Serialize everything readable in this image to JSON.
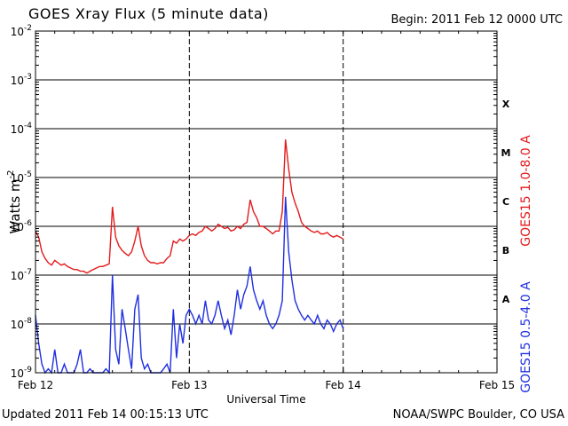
{
  "header": {
    "title": "GOES Xray Flux (5 minute data)",
    "begin": "Begin:  2011 Feb 12 0000 UTC"
  },
  "footer": {
    "updated": "Updated 2011 Feb 14 00:15:13 UTC",
    "credit": "NOAA/SWPC Boulder, CO USA"
  },
  "chart_data": {
    "type": "line",
    "title": "GOES Xray Flux (5 minute data)",
    "xlabel": "Universal Time",
    "ylabel": "Watts m-2",
    "yscale": "log",
    "ylim": [
      1e-09,
      0.01
    ],
    "xlim": [
      0,
      72
    ],
    "x_unit": "hours since 2011 Feb 12 0000 UTC",
    "yticks": [
      "10-9",
      "10-8",
      "10-7",
      "10-6",
      "10-5",
      "10-4",
      "10-3",
      "10-2"
    ],
    "xticks": [
      {
        "x": 0,
        "label": "Feb 12"
      },
      {
        "x": 24,
        "label": "Feb 13"
      },
      {
        "x": 48,
        "label": "Feb 14"
      },
      {
        "x": 72,
        "label": "Feb 15"
      }
    ],
    "flare_classes": [
      {
        "label": "X",
        "y": 0.00032
      },
      {
        "label": "M",
        "y": 3.2e-05
      },
      {
        "label": "C",
        "y": 3.2e-06
      },
      {
        "label": "B",
        "y": 3.2e-07
      },
      {
        "label": "A",
        "y": 3.2e-08
      }
    ],
    "grid": true,
    "series": [
      {
        "name": "GOES15 1.0-8.0 A",
        "color": "#e31a1c",
        "x": [
          0,
          0.5,
          1,
          1.5,
          2,
          2.5,
          3,
          3.5,
          4,
          4.5,
          5,
          5.5,
          6,
          6.5,
          7,
          7.5,
          8,
          8.5,
          9,
          9.5,
          10,
          10.5,
          11,
          11.5,
          12,
          12.5,
          13,
          13.5,
          14,
          14.5,
          15,
          15.5,
          16,
          16.5,
          17,
          17.5,
          18,
          18.5,
          19,
          19.5,
          20,
          20.5,
          21,
          21.5,
          22,
          22.5,
          23,
          23.5,
          24,
          24.5,
          25,
          25.5,
          26,
          26.5,
          27,
          27.5,
          28,
          28.5,
          29,
          29.5,
          30,
          30.5,
          31,
          31.5,
          32,
          32.5,
          33,
          33.5,
          34,
          34.5,
          35,
          35.5,
          36,
          36.5,
          37,
          37.5,
          38,
          38.5,
          39,
          39.5,
          40,
          40.5,
          41,
          41.5,
          42,
          42.5,
          43,
          43.5,
          44,
          44.5,
          45,
          45.5,
          46,
          46.5,
          47,
          47.5,
          48
        ],
        "y": [
          8e-07,
          6e-07,
          3e-07,
          2.2e-07,
          1.8e-07,
          1.6e-07,
          2e-07,
          1.8e-07,
          1.6e-07,
          1.7e-07,
          1.5e-07,
          1.4e-07,
          1.3e-07,
          1.3e-07,
          1.2e-07,
          1.2e-07,
          1.1e-07,
          1.2e-07,
          1.3e-07,
          1.4e-07,
          1.5e-07,
          1.5e-07,
          1.6e-07,
          1.7e-07,
          2.5e-06,
          6e-07,
          4e-07,
          3.2e-07,
          2.8e-07,
          2.5e-07,
          3e-07,
          5e-07,
          1e-06,
          4e-07,
          2.5e-07,
          2e-07,
          1.8e-07,
          1.8e-07,
          1.7e-07,
          1.8e-07,
          1.8e-07,
          2.2e-07,
          2.5e-07,
          5e-07,
          4.5e-07,
          5.5e-07,
          5e-07,
          5.5e-07,
          6.5e-07,
          7e-07,
          6.5e-07,
          7.5e-07,
          8e-07,
          1e-06,
          9e-07,
          8e-07,
          9e-07,
          1.1e-06,
          1e-06,
          9e-07,
          9.5e-07,
          8e-07,
          8.5e-07,
          1e-06,
          9e-07,
          1.1e-06,
          1.2e-06,
          3.5e-06,
          2e-06,
          1.5e-06,
          1e-06,
          1e-06,
          9e-07,
          8e-07,
          7e-07,
          8e-07,
          8e-07,
          2e-06,
          6e-05,
          1.5e-05,
          5e-06,
          3e-06,
          2e-06,
          1.2e-06,
          1e-06,
          9e-07,
          8e-07,
          7.5e-07,
          8e-07,
          7e-07,
          7e-07,
          7.5e-07,
          6.5e-07,
          6e-07,
          6.5e-07,
          6e-07,
          5.5e-07
        ]
      },
      {
        "name": "GOES15 0.5-4.0 A",
        "color": "#1f2fe0",
        "x": [
          0,
          0.5,
          1,
          1.5,
          2,
          2.5,
          3,
          3.5,
          4,
          4.5,
          5,
          5.5,
          6,
          6.5,
          7,
          7.5,
          8,
          8.5,
          9,
          9.5,
          10,
          10.5,
          11,
          11.5,
          12,
          12.5,
          13,
          13.5,
          14,
          14.5,
          15,
          15.5,
          16,
          16.5,
          17,
          17.5,
          18,
          18.5,
          19,
          19.5,
          20,
          20.5,
          21,
          21.5,
          22,
          22.5,
          23,
          23.5,
          24,
          24.5,
          25,
          25.5,
          26,
          26.5,
          27,
          27.5,
          28,
          28.5,
          29,
          29.5,
          30,
          30.5,
          31,
          31.5,
          32,
          32.5,
          33,
          33.5,
          34,
          34.5,
          35,
          35.5,
          36,
          36.5,
          37,
          37.5,
          38,
          38.5,
          39,
          39.5,
          40,
          40.5,
          41,
          41.5,
          42,
          42.5,
          43,
          43.5,
          44,
          44.5,
          45,
          45.5,
          46,
          46.5,
          47,
          47.5,
          48
        ],
        "y": [
          1.5e-08,
          4e-09,
          1.5e-09,
          1e-09,
          1.2e-09,
          1e-09,
          3e-09,
          1e-09,
          1e-09,
          1.5e-09,
          1e-09,
          1e-09,
          1e-09,
          1.5e-09,
          3e-09,
          1e-09,
          1e-09,
          1.2e-09,
          1e-09,
          1e-09,
          1e-09,
          1e-09,
          1.2e-09,
          1e-09,
          1e-07,
          3e-09,
          1.5e-09,
          2e-08,
          8e-09,
          3e-09,
          1.2e-09,
          2e-08,
          4e-08,
          2e-09,
          1.2e-09,
          1.5e-09,
          1e-09,
          1e-09,
          1e-09,
          1e-09,
          1.2e-09,
          1.5e-09,
          1e-09,
          2e-08,
          2e-09,
          1e-08,
          4e-09,
          1.5e-08,
          2e-08,
          1.5e-08,
          1e-08,
          1.5e-08,
          1e-08,
          3e-08,
          1.2e-08,
          1e-08,
          1.5e-08,
          3e-08,
          1.5e-08,
          8e-09,
          1.2e-08,
          6e-09,
          1.5e-08,
          5e-08,
          2e-08,
          4e-08,
          6e-08,
          1.5e-07,
          5e-08,
          3e-08,
          2e-08,
          3e-08,
          1.5e-08,
          1e-08,
          8e-09,
          1e-08,
          1.5e-08,
          3e-08,
          4e-06,
          3e-07,
          8e-08,
          3e-08,
          2e-08,
          1.5e-08,
          1.2e-08,
          1.5e-08,
          1.2e-08,
          1e-08,
          1.5e-08,
          1e-08,
          8e-09,
          1.2e-08,
          1e-08,
          7e-09,
          1e-08,
          1.2e-08,
          8e-09
        ]
      }
    ]
  }
}
